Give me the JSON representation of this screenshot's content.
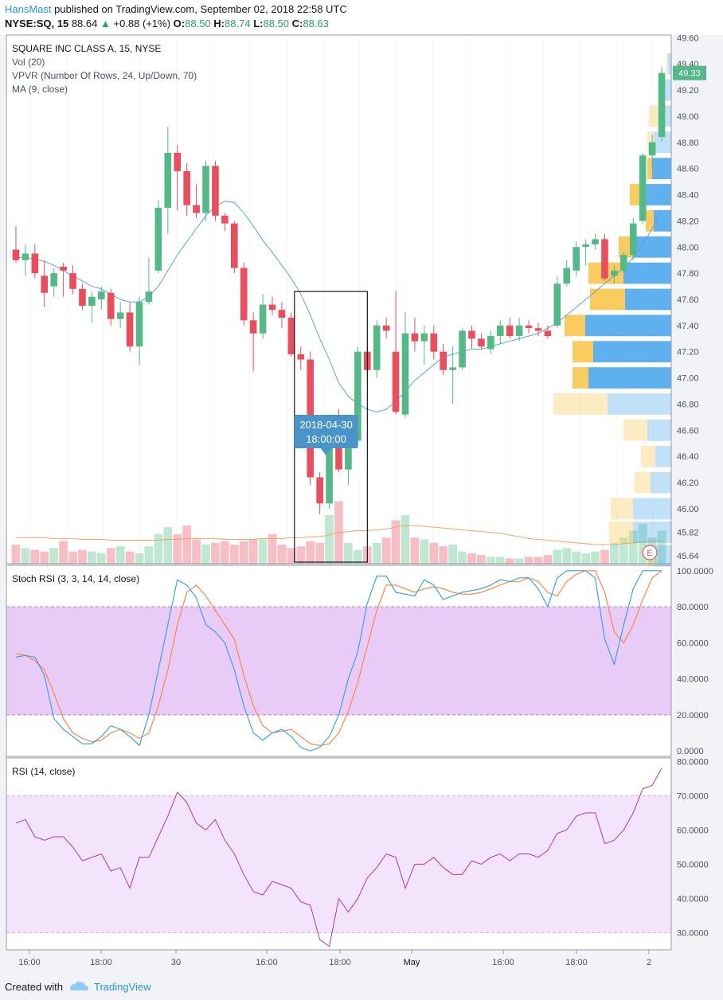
{
  "header": {
    "author": "HansMast",
    "published": "published on TradingView.com, September 02, 2018 22:58 UTC",
    "symbol": "NYSE:SQ, 15",
    "last": "88.64",
    "change": "+0.88 (+1%)",
    "open_label": "O:",
    "open": "88.50",
    "high_label": "H:",
    "high": "88.74",
    "low_label": "L:",
    "low": "88.50",
    "close_label": "C:",
    "close": "88.63"
  },
  "footer": {
    "created_with": "Created with",
    "brand": "TradingView"
  },
  "colors": {
    "up": "#53b987",
    "down": "#eb4d5c",
    "ma": "#5aa5d6",
    "vol_ma": "#f5a460",
    "stoch_k": "#2f9ee8",
    "stoch_d": "#ff7f32",
    "rsi": "#a43db3",
    "vp_up": "#4da9ec",
    "vp_down": "#f9c74f"
  },
  "chart_data": [
    {
      "type": "candlestick",
      "title": "SQUARE INC CLASS A, 15, NYSE",
      "indicators": [
        "Vol (20)",
        "VPVR (Number Of Rows, 24, Up/Down, 70)",
        "MA (9, close)"
      ],
      "ylim": [
        45.58,
        49.62
      ],
      "yticks": [
        "49.60",
        "49.40",
        "49.20",
        "49.00",
        "48.80",
        "48.60",
        "48.40",
        "48.20",
        "48.00",
        "47.80",
        "47.60",
        "47.40",
        "47.20",
        "47.00",
        "46.80",
        "46.60",
        "46.40",
        "46.20",
        "46.00",
        "45.82",
        "45.64"
      ],
      "last_price": "49.33",
      "candles": [
        {
          "o": 47.98,
          "h": 48.16,
          "l": 47.88,
          "c": 47.9
        },
        {
          "o": 47.9,
          "h": 48.02,
          "l": 47.78,
          "c": 47.95
        },
        {
          "o": 47.95,
          "h": 48.02,
          "l": 47.76,
          "c": 47.8
        },
        {
          "o": 47.78,
          "h": 47.9,
          "l": 47.54,
          "c": 47.65
        },
        {
          "o": 47.7,
          "h": 47.84,
          "l": 47.62,
          "c": 47.8
        },
        {
          "o": 47.85,
          "h": 47.88,
          "l": 47.62,
          "c": 47.82
        },
        {
          "o": 47.8,
          "h": 47.86,
          "l": 47.64,
          "c": 47.68
        },
        {
          "o": 47.68,
          "h": 47.72,
          "l": 47.52,
          "c": 47.55
        },
        {
          "o": 47.55,
          "h": 47.66,
          "l": 47.42,
          "c": 47.62
        },
        {
          "o": 47.6,
          "h": 47.7,
          "l": 47.52,
          "c": 47.66
        },
        {
          "o": 47.65,
          "h": 47.68,
          "l": 47.4,
          "c": 47.45
        },
        {
          "o": 47.45,
          "h": 47.58,
          "l": 47.38,
          "c": 47.5
        },
        {
          "o": 47.5,
          "h": 47.58,
          "l": 47.2,
          "c": 47.24
        },
        {
          "o": 47.24,
          "h": 47.62,
          "l": 47.1,
          "c": 47.58
        },
        {
          "o": 47.58,
          "h": 47.92,
          "l": 47.56,
          "c": 47.66
        },
        {
          "o": 47.82,
          "h": 48.36,
          "l": 47.8,
          "c": 48.3
        },
        {
          "o": 48.3,
          "h": 48.92,
          "l": 48.1,
          "c": 48.72
        },
        {
          "o": 48.72,
          "h": 48.78,
          "l": 48.28,
          "c": 48.58
        },
        {
          "o": 48.58,
          "h": 48.64,
          "l": 48.24,
          "c": 48.32
        },
        {
          "o": 48.32,
          "h": 48.48,
          "l": 48.22,
          "c": 48.26
        },
        {
          "o": 48.26,
          "h": 48.66,
          "l": 48.2,
          "c": 48.62
        },
        {
          "o": 48.62,
          "h": 48.66,
          "l": 48.2,
          "c": 48.24
        },
        {
          "o": 48.24,
          "h": 48.26,
          "l": 48.12,
          "c": 48.18
        },
        {
          "o": 48.18,
          "h": 48.2,
          "l": 47.8,
          "c": 47.84
        },
        {
          "o": 47.84,
          "h": 47.88,
          "l": 47.4,
          "c": 47.44
        },
        {
          "o": 47.44,
          "h": 47.5,
          "l": 47.05,
          "c": 47.34
        },
        {
          "o": 47.34,
          "h": 47.64,
          "l": 47.3,
          "c": 47.56
        },
        {
          "o": 47.56,
          "h": 47.62,
          "l": 47.48,
          "c": 47.52
        },
        {
          "o": 47.52,
          "h": 47.58,
          "l": 47.38,
          "c": 47.46
        },
        {
          "o": 47.46,
          "h": 47.5,
          "l": 47.16,
          "c": 47.18
        },
        {
          "o": 47.18,
          "h": 47.24,
          "l": 47.06,
          "c": 47.14
        },
        {
          "o": 47.14,
          "h": 47.2,
          "l": 46.18,
          "c": 46.24
        },
        {
          "o": 46.24,
          "h": 46.28,
          "l": 45.96,
          "c": 46.04
        },
        {
          "o": 46.04,
          "h": 46.72,
          "l": 46.0,
          "c": 46.7
        },
        {
          "o": 46.7,
          "h": 46.76,
          "l": 46.28,
          "c": 46.3
        },
        {
          "o": 46.3,
          "h": 46.62,
          "l": 46.18,
          "c": 46.58
        },
        {
          "o": 46.52,
          "h": 47.24,
          "l": 46.48,
          "c": 47.2
        },
        {
          "o": 47.2,
          "h": 47.28,
          "l": 47.0,
          "c": 47.06
        },
        {
          "o": 47.06,
          "h": 47.44,
          "l": 47.0,
          "c": 47.4
        },
        {
          "o": 47.4,
          "h": 47.46,
          "l": 47.3,
          "c": 47.36
        },
        {
          "o": 47.2,
          "h": 47.66,
          "l": 46.72,
          "c": 46.74
        },
        {
          "o": 46.72,
          "h": 47.5,
          "l": 46.7,
          "c": 47.34
        },
        {
          "o": 47.34,
          "h": 47.46,
          "l": 47.2,
          "c": 47.28
        },
        {
          "o": 47.28,
          "h": 47.4,
          "l": 47.1,
          "c": 47.34
        },
        {
          "o": 47.34,
          "h": 47.4,
          "l": 47.14,
          "c": 47.2
        },
        {
          "o": 47.2,
          "h": 47.26,
          "l": 47.02,
          "c": 47.06
        },
        {
          "o": 47.06,
          "h": 47.24,
          "l": 46.8,
          "c": 47.08
        },
        {
          "o": 47.08,
          "h": 47.38,
          "l": 47.06,
          "c": 47.36
        },
        {
          "o": 47.36,
          "h": 47.4,
          "l": 47.22,
          "c": 47.3
        },
        {
          "o": 47.3,
          "h": 47.34,
          "l": 47.22,
          "c": 47.24
        },
        {
          "o": 47.22,
          "h": 47.36,
          "l": 47.18,
          "c": 47.32
        },
        {
          "o": 47.32,
          "h": 47.44,
          "l": 47.26,
          "c": 47.4
        },
        {
          "o": 47.4,
          "h": 47.46,
          "l": 47.3,
          "c": 47.32
        },
        {
          "o": 47.32,
          "h": 47.46,
          "l": 47.28,
          "c": 47.4
        },
        {
          "o": 47.4,
          "h": 47.44,
          "l": 47.34,
          "c": 47.38
        },
        {
          "o": 47.38,
          "h": 47.42,
          "l": 47.32,
          "c": 47.36
        },
        {
          "o": 47.36,
          "h": 47.4,
          "l": 47.3,
          "c": 47.32
        },
        {
          "o": 47.4,
          "h": 47.78,
          "l": 47.38,
          "c": 47.72
        },
        {
          "o": 47.72,
          "h": 47.9,
          "l": 47.7,
          "c": 47.84
        },
        {
          "o": 47.82,
          "h": 48.04,
          "l": 47.78,
          "c": 48.0
        },
        {
          "o": 48.0,
          "h": 48.06,
          "l": 47.86,
          "c": 48.02
        },
        {
          "o": 48.02,
          "h": 48.1,
          "l": 47.98,
          "c": 48.06
        },
        {
          "o": 48.06,
          "h": 48.1,
          "l": 47.74,
          "c": 47.76
        },
        {
          "o": 47.78,
          "h": 47.86,
          "l": 47.72,
          "c": 47.82
        },
        {
          "o": 47.82,
          "h": 47.96,
          "l": 47.8,
          "c": 47.94
        },
        {
          "o": 47.94,
          "h": 48.22,
          "l": 47.9,
          "c": 48.18
        },
        {
          "o": 48.2,
          "h": 48.72,
          "l": 48.18,
          "c": 48.7
        },
        {
          "o": 48.7,
          "h": 48.86,
          "l": 48.6,
          "c": 48.8
        },
        {
          "o": 48.84,
          "h": 49.38,
          "l": 48.8,
          "c": 49.33
        }
      ],
      "ma": [
        47.92,
        47.92,
        47.91,
        47.89,
        47.86,
        47.82,
        47.78,
        47.74,
        47.7,
        47.68,
        47.64,
        47.6,
        47.58,
        47.58,
        47.62,
        47.7,
        47.82,
        47.94,
        48.04,
        48.14,
        48.24,
        48.31,
        48.35,
        48.34,
        48.26,
        48.16,
        48.05,
        47.96,
        47.86,
        47.76,
        47.64,
        47.48,
        47.3,
        47.14,
        46.96,
        46.86,
        46.8,
        46.76,
        46.74,
        46.76,
        46.82,
        46.9,
        46.98,
        47.04,
        47.1,
        47.16,
        47.18,
        47.2,
        47.22,
        47.22,
        47.24,
        47.26,
        47.28,
        47.3,
        47.32,
        47.34,
        47.38,
        47.42,
        47.48,
        47.54,
        47.6,
        47.66,
        47.72,
        47.78,
        47.84,
        47.92,
        48.02,
        48.14,
        48.28
      ],
      "volume": [
        22,
        18,
        16,
        14,
        18,
        26,
        14,
        16,
        14,
        12,
        18,
        20,
        14,
        12,
        20,
        34,
        42,
        34,
        44,
        28,
        22,
        24,
        26,
        22,
        26,
        28,
        28,
        34,
        22,
        18,
        20,
        26,
        24,
        56,
        72,
        24,
        16,
        20,
        24,
        30,
        50,
        56,
        30,
        28,
        24,
        20,
        22,
        14,
        12,
        10,
        8,
        8,
        6,
        6,
        8,
        8,
        10,
        16,
        18,
        14,
        12,
        14,
        16,
        24,
        30,
        38,
        46,
        30,
        38
      ],
      "vol_ma": [
        30,
        30,
        30,
        30,
        29,
        29,
        29,
        28,
        28,
        28,
        27,
        27,
        27,
        27,
        27,
        27,
        28,
        28,
        29,
        29,
        29,
        29,
        28,
        28,
        28,
        28,
        29,
        29,
        29,
        30,
        30,
        31,
        31,
        33,
        36,
        37,
        38,
        38,
        39,
        40,
        42,
        44,
        44,
        43,
        42,
        41,
        40,
        39,
        38,
        37,
        36,
        35,
        33,
        31,
        29,
        28,
        27,
        26,
        25,
        24,
        23,
        22,
        22,
        22,
        23,
        24,
        25,
        26,
        27
      ],
      "vpvr": [
        {
          "price": 49.4,
          "up": 4,
          "down": 2
        },
        {
          "price": 49.2,
          "up": 8,
          "down": 4
        },
        {
          "price": 49.0,
          "up": 16,
          "down": 12
        },
        {
          "price": 48.8,
          "up": 22,
          "down": 8
        },
        {
          "price": 48.6,
          "up": 24,
          "down": 6
        },
        {
          "price": 48.4,
          "up": 32,
          "down": 20
        },
        {
          "price": 48.2,
          "up": 22,
          "down": 10
        },
        {
          "price": 48.0,
          "up": 48,
          "down": 18
        },
        {
          "price": 47.8,
          "up": 60,
          "down": 44
        },
        {
          "price": 47.6,
          "up": 58,
          "down": 44
        },
        {
          "price": 47.4,
          "up": 108,
          "down": 26
        },
        {
          "price": 47.2,
          "up": 98,
          "down": 26
        },
        {
          "price": 47.0,
          "up": 104,
          "down": 20
        },
        {
          "price": 46.8,
          "up": 80,
          "down": 68
        },
        {
          "price": 46.6,
          "up": 30,
          "down": 30
        },
        {
          "price": 46.4,
          "up": 20,
          "down": 18
        },
        {
          "price": 46.2,
          "up": 26,
          "down": 20
        },
        {
          "price": 46.0,
          "up": 48,
          "down": 28
        },
        {
          "price": 45.82,
          "up": 48,
          "down": 30
        },
        {
          "price": 45.64,
          "up": 20,
          "down": 10
        }
      ],
      "selection": {
        "label1": "2018-04-30",
        "label2": "18:00:00"
      },
      "event_badge": "E"
    },
    {
      "type": "line",
      "title": "Stoch RSI (3, 3, 14, 14, close)",
      "ylim": [
        -3,
        103
      ],
      "yticks": [
        "100.0000",
        "80.0000",
        "60.0000",
        "40.0000",
        "20.0000",
        "0.0000"
      ],
      "band": [
        20,
        80
      ],
      "series": [
        {
          "values": [
            52,
            53,
            52,
            42,
            18,
            12,
            8,
            4,
            4,
            8,
            14,
            12,
            8,
            3,
            20,
            45,
            70,
            95,
            92,
            85,
            70,
            66,
            60,
            45,
            25,
            10,
            6,
            10,
            12,
            8,
            2,
            0,
            2,
            8,
            20,
            40,
            55,
            82,
            97,
            97,
            88,
            87,
            86,
            95,
            92,
            84,
            86,
            88,
            89,
            90,
            92,
            95,
            94,
            96,
            96,
            90,
            80,
            96,
            100,
            100,
            100,
            96,
            62,
            48,
            70,
            90,
            100,
            100,
            100
          ]
        },
        {
          "values": [
            54,
            53,
            50,
            45,
            32,
            18,
            10,
            7,
            5,
            6,
            10,
            12,
            10,
            7,
            10,
            25,
            45,
            70,
            88,
            92,
            86,
            78,
            70,
            62,
            42,
            25,
            14,
            10,
            11,
            12,
            8,
            4,
            3,
            4,
            10,
            22,
            38,
            58,
            78,
            92,
            92,
            90,
            88,
            90,
            91,
            90,
            88,
            87,
            87,
            88,
            90,
            92,
            94,
            94,
            96,
            94,
            88,
            86,
            94,
            98,
            100,
            100,
            88,
            66,
            60,
            70,
            84,
            96,
            100
          ]
        }
      ]
    },
    {
      "type": "line",
      "title": "RSI (14, close)",
      "ylim": [
        25,
        81
      ],
      "yticks": [
        "80.0000",
        "70.0000",
        "60.0000",
        "50.0000",
        "40.0000",
        "30.0000"
      ],
      "band": [
        30,
        70
      ],
      "series": [
        {
          "values": [
            62,
            63,
            58,
            57,
            58,
            58,
            55,
            51,
            52,
            53,
            48,
            49,
            43,
            52,
            52,
            58,
            64,
            71,
            68,
            62,
            60,
            63,
            57,
            53,
            47,
            42,
            41,
            45,
            44,
            43,
            39,
            38,
            28,
            26,
            40,
            36,
            40,
            46,
            49,
            53,
            52,
            43,
            50,
            50,
            52,
            49,
            47,
            47,
            51,
            50,
            52,
            53,
            51,
            53,
            53,
            52,
            54,
            59,
            60,
            64,
            65,
            65,
            56,
            57,
            60,
            65,
            72,
            73,
            78
          ]
        }
      ]
    }
  ],
  "x_axis": {
    "labels": [
      "16:00",
      "18:00",
      "30",
      "16:00",
      "18:00",
      "May",
      "16:00",
      "18:00",
      "2"
    ]
  }
}
